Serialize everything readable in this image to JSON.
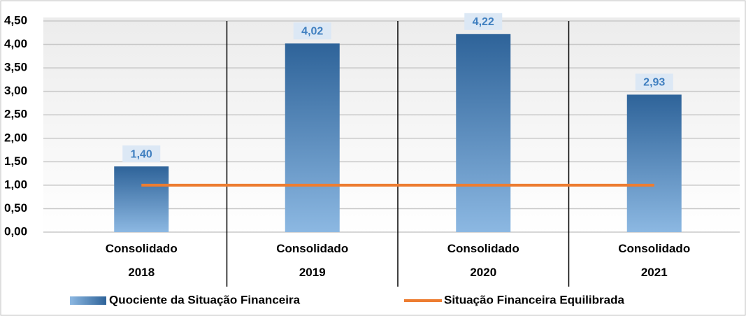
{
  "chart_data": {
    "type": "bar",
    "categories": [
      "Consolidado 2018",
      "Consolidado 2019",
      "Consolidado 2020",
      "Consolidado 2021"
    ],
    "series": [
      {
        "name": "Quociente da Situação Financeira",
        "type": "bar",
        "color": "#2e6399",
        "values": [
          1.4,
          4.02,
          4.22,
          2.93
        ],
        "value_labels": [
          "1,40",
          "4,02",
          "4,22",
          "2,93"
        ]
      },
      {
        "name": "Situação Financeira Equilibrada",
        "type": "line",
        "color": "#ed7d31",
        "values": [
          1,
          1,
          1,
          1
        ]
      }
    ],
    "ylim": [
      0,
      4.5
    ],
    "yticks": [
      {
        "value": 0,
        "label": "0,00"
      },
      {
        "value": 0.5,
        "label": "0,50"
      },
      {
        "value": 1,
        "label": "1,00"
      },
      {
        "value": 1.5,
        "label": "1,50"
      },
      {
        "value": 2,
        "label": "2,00"
      },
      {
        "value": 2.5,
        "label": "2,50"
      },
      {
        "value": 3,
        "label": "3,00"
      },
      {
        "value": 3.5,
        "label": "3,50"
      },
      {
        "value": 4,
        "label": "4,00"
      },
      {
        "value": 4.5,
        "label": "4,50"
      }
    ],
    "grid": true,
    "legend": "bottom"
  }
}
